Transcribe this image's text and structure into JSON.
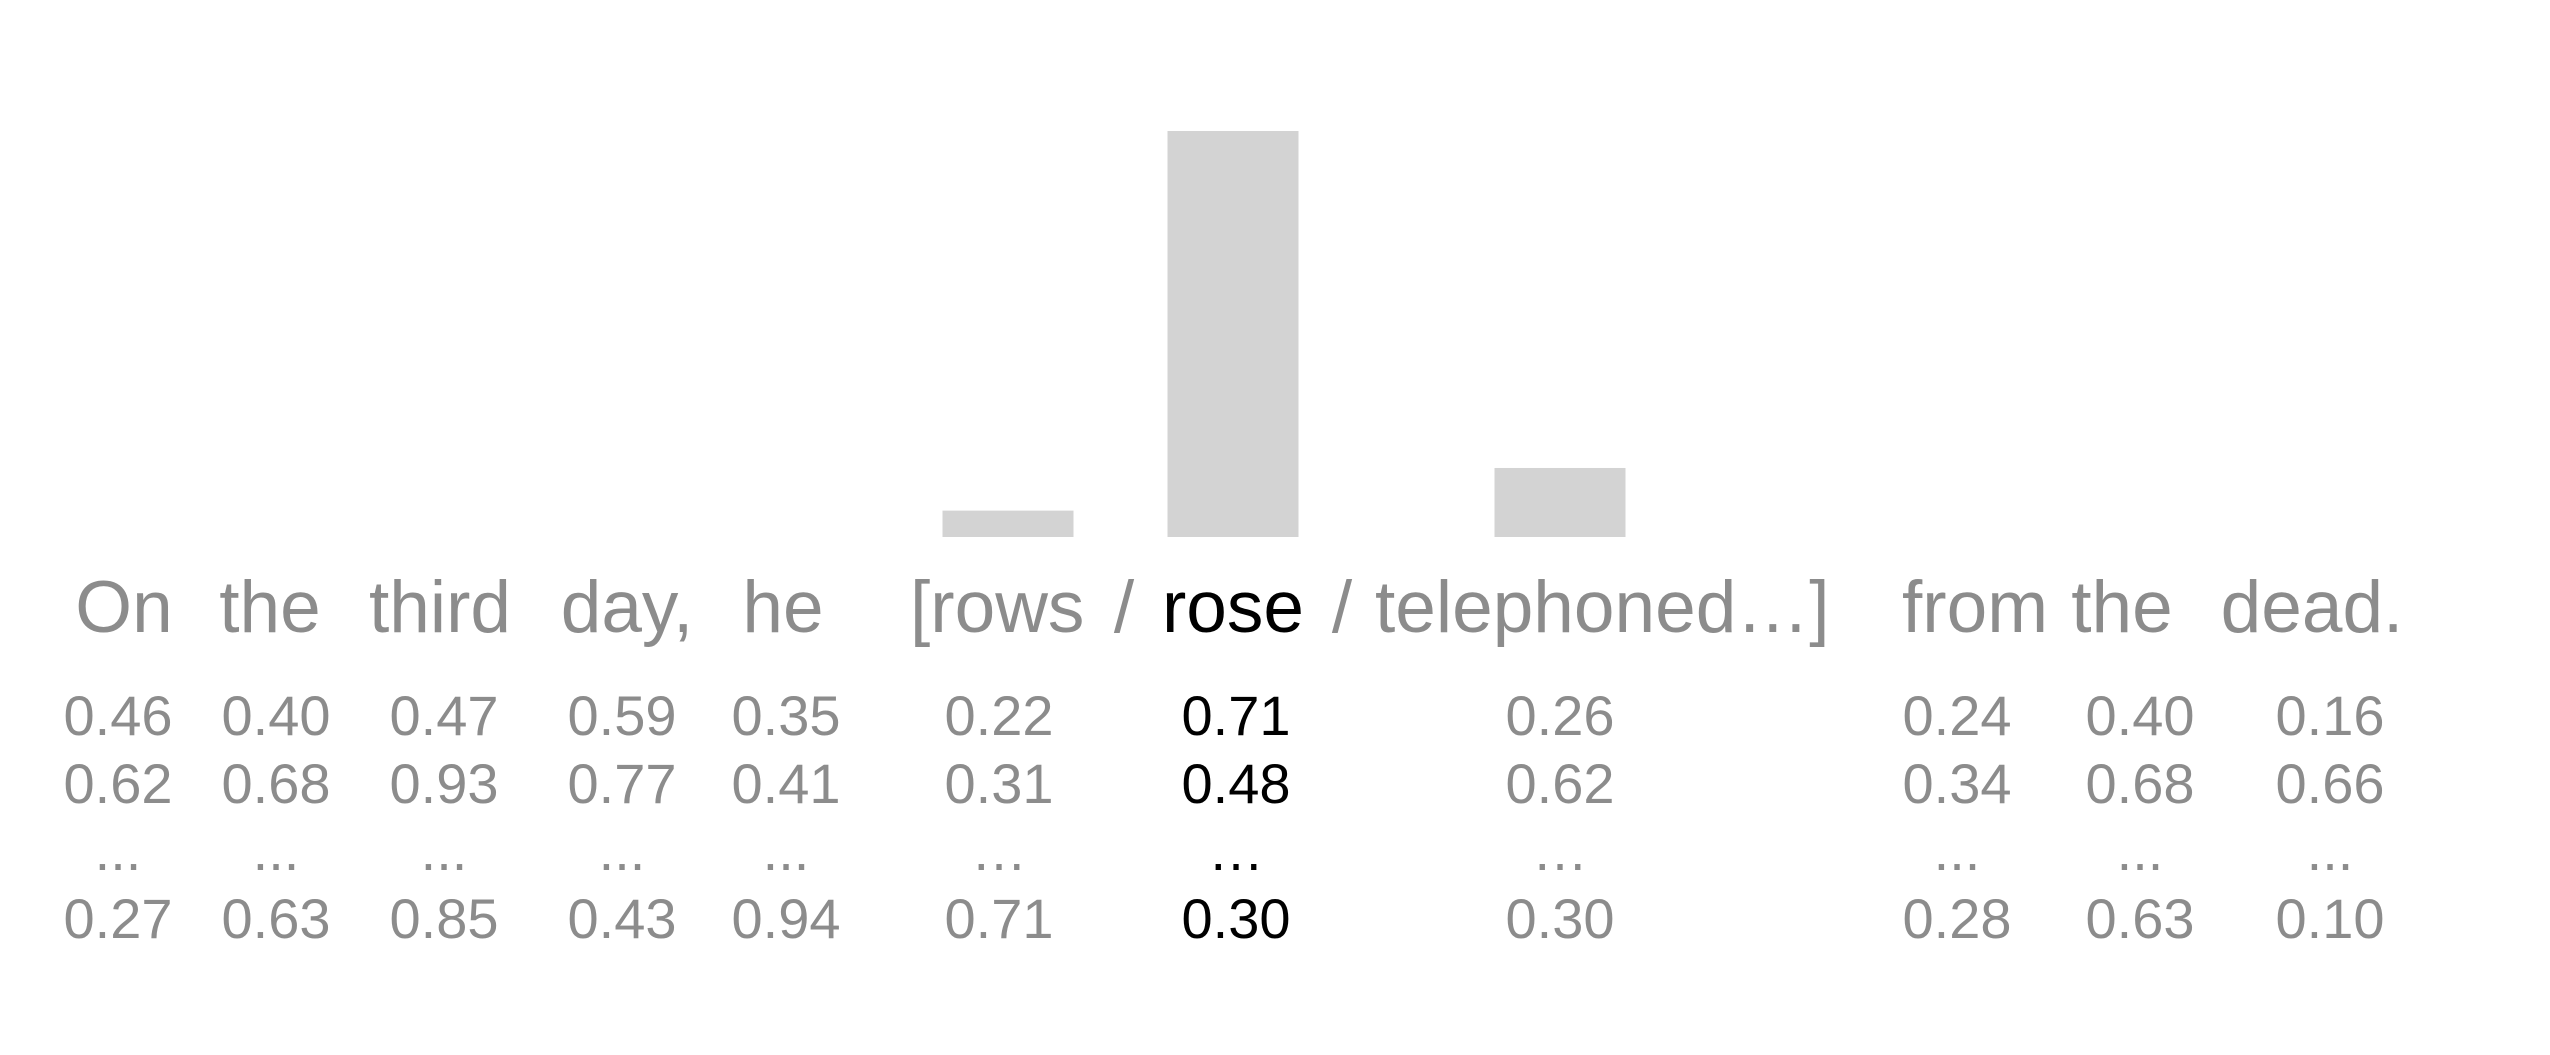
{
  "sentence": {
    "prefix_words": [
      "On",
      "the",
      "third",
      "day,",
      "he"
    ],
    "candidate_open": "[rows",
    "separator": "/",
    "candidate_selected": "rose",
    "candidate_close": "telephoned…]",
    "suffix_words": [
      "from",
      "the",
      "dead."
    ]
  },
  "embedding_columns": [
    {
      "word": "On",
      "values": [
        "0.46",
        "0.62",
        "...",
        "0.27"
      ]
    },
    {
      "word": "the",
      "values": [
        "0.40",
        "0.68",
        "...",
        "0.63"
      ]
    },
    {
      "word": "third",
      "values": [
        "0.47",
        "0.93",
        "...",
        "0.85"
      ]
    },
    {
      "word": "day,",
      "values": [
        "0.59",
        "0.77",
        "...",
        "0.43"
      ]
    },
    {
      "word": "he",
      "values": [
        "0.35",
        "0.41",
        "...",
        "0.94"
      ]
    },
    {
      "word": "rows",
      "values": [
        "0.22",
        "0.31",
        "…",
        "0.71"
      ]
    },
    {
      "word": "rose",
      "values": [
        "0.71",
        "0.48",
        "…",
        "0.30"
      ],
      "highlighted": true
    },
    {
      "word": "telephoned",
      "values": [
        "0.26",
        "0.62",
        "…",
        "0.30"
      ]
    },
    {
      "word": "from",
      "values": [
        "0.24",
        "0.34",
        "...",
        "0.28"
      ]
    },
    {
      "word": "the",
      "values": [
        "0.40",
        "0.68",
        "...",
        "0.63"
      ]
    },
    {
      "word": "dead.",
      "values": [
        "0.16",
        "0.66",
        "...",
        "0.10"
      ]
    }
  ],
  "chart_data": {
    "type": "bar",
    "categories": [
      "rows",
      "rose",
      "telephoned"
    ],
    "values": [
      0.065,
      1.0,
      0.17
    ],
    "ylim": [
      0,
      1
    ],
    "grid": false,
    "colors": {
      "bar": "#d3d3d3",
      "text": "#8c8c8c",
      "highlight": "#000000"
    }
  }
}
